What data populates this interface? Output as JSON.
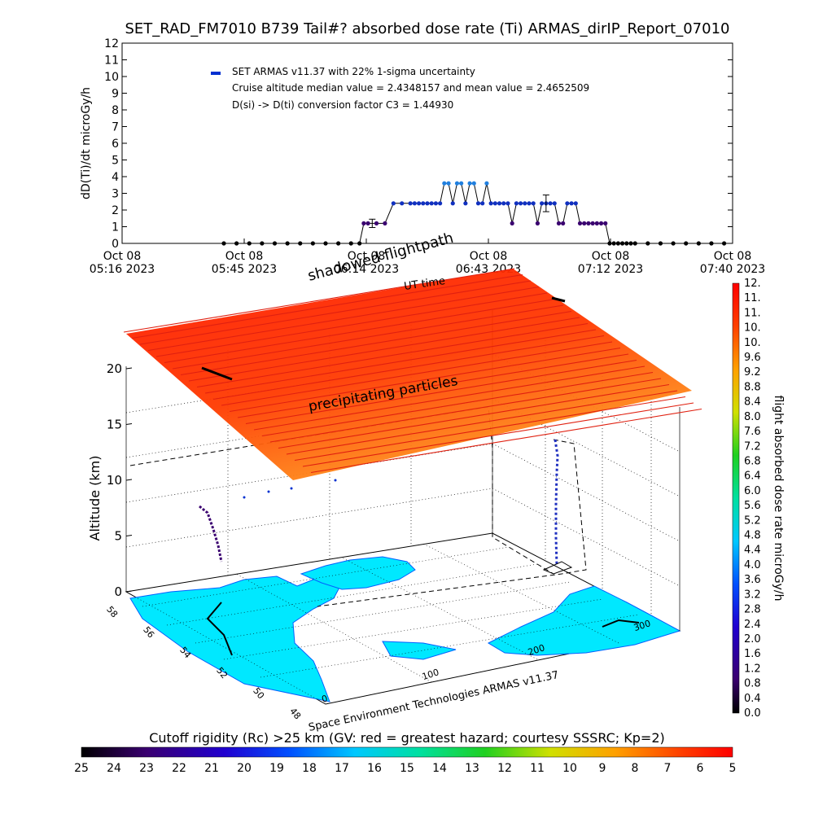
{
  "header": {
    "title": "SET_RAD_FM7010  B739 Tail#? absorbed dose rate (Ti) ARMAS_dirIP_Report_07010"
  },
  "chart_data": [
    {
      "type": "scatter",
      "title": "SET_RAD_FM7010  B739 Tail#? absorbed dose rate (Ti) ARMAS_dirIP_Report_07010",
      "ylabel": "dD(Ti)/dt microGy/h",
      "xlabel": "UT time",
      "ylim": [
        0,
        12
      ],
      "yticks": [
        "0",
        "1",
        "2",
        "3",
        "4",
        "5",
        "6",
        "7",
        "8",
        "9",
        "10",
        "11",
        "12"
      ],
      "xticks": [
        {
          "day": "Oct 08",
          "time": "05:16 2023"
        },
        {
          "day": "Oct 08",
          "time": "05:45 2023"
        },
        {
          "day": "Oct 08",
          "time": "06:14 2023"
        },
        {
          "day": "Oct 08",
          "time": "06:43 2023"
        },
        {
          "day": "Oct 08",
          "time": "07:12 2023"
        },
        {
          "day": "Oct 08",
          "time": "07:40 2023"
        }
      ],
      "xlim_minutes": [
        0,
        144
      ],
      "annotations": [
        "SET ARMAS v11.37 with 22% 1-sigma uncertainty",
        "Cruise altitude median value = 2.4348157 and mean value = 2.4652509",
        "D(si) -> D(ti) conversion factor C3 = 1.44930"
      ],
      "series": [
        {
          "name": "SET ARMAS v11.37 with 22% 1-sigma uncertainty",
          "x_minutes": [
            24,
            27,
            30,
            33,
            36,
            39,
            42,
            45,
            48,
            51,
            54,
            56,
            57,
            58,
            60,
            62,
            64,
            66,
            68,
            69,
            70,
            71,
            72,
            73,
            74,
            75,
            76,
            77,
            78,
            79,
            80,
            81,
            82,
            83,
            84,
            85,
            86,
            87,
            88,
            89,
            90,
            91,
            92,
            93,
            94,
            95,
            96,
            97,
            98,
            99,
            100,
            101,
            102,
            103,
            104,
            105,
            106,
            107,
            108,
            109,
            110,
            111,
            112,
            113,
            114,
            115,
            116,
            117,
            118,
            119,
            120,
            121,
            124,
            127,
            130,
            133,
            136,
            139,
            142
          ],
          "values": [
            0,
            0,
            0,
            0,
            0,
            0,
            0,
            0,
            0,
            0,
            0,
            0,
            1.2,
            1.2,
            1.2,
            1.2,
            2.4,
            2.4,
            2.4,
            2.4,
            2.4,
            2.4,
            2.4,
            2.4,
            2.4,
            2.4,
            3.6,
            3.6,
            2.4,
            3.6,
            3.6,
            2.4,
            3.6,
            3.6,
            2.4,
            2.4,
            3.6,
            2.4,
            2.4,
            2.4,
            2.4,
            2.4,
            1.2,
            2.4,
            2.4,
            2.4,
            2.4,
            2.4,
            1.2,
            2.4,
            2.4,
            2.4,
            2.4,
            1.2,
            1.2,
            2.4,
            2.4,
            2.4,
            1.2,
            1.2,
            1.2,
            1.2,
            1.2,
            1.2,
            1.2,
            0,
            0,
            0,
            0,
            0,
            0,
            0,
            0,
            0,
            0,
            0,
            0,
            0,
            0
          ]
        }
      ],
      "error_bars": [
        {
          "x_minutes": 59,
          "value": 1.2,
          "low": 0.95,
          "high": 1.45
        },
        {
          "x_minutes": 100,
          "value": 2.4,
          "low": 1.9,
          "high": 2.9
        }
      ]
    },
    {
      "type": "3d-trajectory",
      "title_overlays": [
        "shadowed flightpath",
        "UT time",
        "precipitating particles"
      ],
      "zlabel": "Altitude (km)",
      "zticks": [
        "0",
        "5",
        "10",
        "15",
        "20"
      ],
      "lat_ticks": [
        "48",
        "50",
        "52",
        "54",
        "56",
        "58"
      ],
      "lon_ticks": [
        "0",
        "100",
        "200",
        "300"
      ],
      "credit": "Space Environment Technologies ARMAS v11.37"
    }
  ],
  "dose_colorbar": {
    "label": "flight absorbed dose rate microGy/h",
    "ticks": [
      "0.0",
      "0.4",
      "0.8",
      "1.2",
      "1.6",
      "2.0",
      "2.4",
      "2.8",
      "3.2",
      "3.6",
      "4.0",
      "4.4",
      "4.8",
      "5.2",
      "5.6",
      "6.0",
      "6.4",
      "6.8",
      "7.2",
      "7.6",
      "8.0",
      "8.4",
      "8.8",
      "9.2",
      "9.6",
      "10.",
      "10.",
      "11.",
      "11.",
      "12."
    ]
  },
  "rigidity_colorbar": {
    "label": "Cutoff rigidity (Rc) >25 km (GV: red = greatest hazard; courtesy SSSRC; Kp=2)",
    "ticks": [
      "25",
      "24",
      "23",
      "22",
      "21",
      "20",
      "19",
      "18",
      "17",
      "16",
      "15",
      "14",
      "13",
      "12",
      "11",
      "10",
      "9",
      "8",
      "7",
      "6",
      "5"
    ]
  },
  "colors": {
    "rainbow": [
      "#000000",
      "#3a0070",
      "#2000d0",
      "#0050ff",
      "#00c8ff",
      "#00e0a0",
      "#20d020",
      "#d0e000",
      "#ffa000",
      "#ff4000",
      "#ff0000"
    ],
    "land": "#00e8ff",
    "track": "#000000",
    "precip_line": "#e02010"
  }
}
